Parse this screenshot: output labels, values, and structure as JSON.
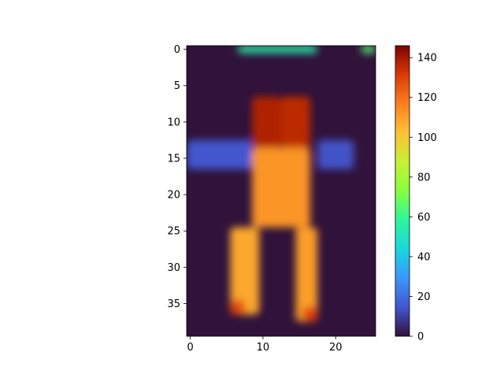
{
  "chart_data": {
    "type": "heatmap",
    "title": "",
    "xlabel": "",
    "ylabel": "",
    "grid": false,
    "interpolation": "smooth",
    "colormap": "turbo",
    "shape": {
      "rows": 40,
      "cols": 26
    },
    "xlim": [
      -0.5,
      25.5
    ],
    "ylim": [
      39.5,
      -0.5
    ],
    "x_ticks": [
      0,
      10,
      20
    ],
    "x_tick_labels": [
      "0",
      "10",
      "20"
    ],
    "y_ticks": [
      0,
      5,
      10,
      15,
      20,
      25,
      30,
      35
    ],
    "y_tick_labels": [
      "0",
      "5",
      "10",
      "15",
      "20",
      "25",
      "30",
      "35"
    ],
    "colorbar": {
      "range": [
        0,
        146
      ],
      "ticks": [
        0,
        20,
        40,
        60,
        80,
        100,
        120,
        140
      ],
      "tick_labels": [
        "0",
        "20",
        "40",
        "60",
        "80",
        "100",
        "120",
        "140"
      ]
    },
    "regions": [
      {
        "label": "top-edge-band",
        "rows": [
          0,
          0
        ],
        "cols": [
          7,
          17
        ],
        "value": 55
      },
      {
        "label": "top-right-corner",
        "rows": [
          0,
          0
        ],
        "cols": [
          24,
          25
        ],
        "value": 65
      },
      {
        "label": "upper-body-peak-left",
        "rows": [
          7,
          13
        ],
        "cols": [
          9,
          12
        ],
        "value": 138
      },
      {
        "label": "upper-body-peak-right",
        "rows": [
          7,
          13
        ],
        "cols": [
          13,
          16
        ],
        "value": 136
      },
      {
        "label": "mid-body",
        "rows": [
          14,
          24
        ],
        "cols": [
          9,
          16
        ],
        "value": 112
      },
      {
        "label": "left-leg",
        "rows": [
          25,
          36
        ],
        "cols": [
          6,
          9
        ],
        "value": 108
      },
      {
        "label": "right-leg",
        "rows": [
          25,
          37
        ],
        "cols": [
          15,
          17
        ],
        "value": 110
      },
      {
        "label": "left-foot-hotspot",
        "rows": [
          35,
          36
        ],
        "cols": [
          6,
          7
        ],
        "value": 128
      },
      {
        "label": "right-foot-hotspot",
        "rows": [
          36,
          37
        ],
        "cols": [
          16,
          17
        ],
        "value": 130
      },
      {
        "label": "side-halo-left",
        "rows": [
          13,
          16
        ],
        "cols": [
          0,
          8
        ],
        "value": 15
      },
      {
        "label": "side-halo-right",
        "rows": [
          13,
          16
        ],
        "cols": [
          18,
          22
        ],
        "value": 14
      },
      {
        "label": "background",
        "rows": [
          0,
          39
        ],
        "cols": [
          0,
          25
        ],
        "value": 2
      }
    ]
  }
}
